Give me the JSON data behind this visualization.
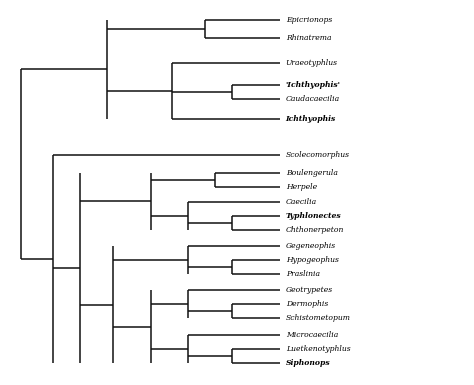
{
  "taxa": [
    {
      "name": "Epicrionops",
      "bold": false
    },
    {
      "name": "Rhinatrema",
      "bold": false
    },
    {
      "name": "Uraeotyphlus",
      "bold": false
    },
    {
      "name": "’Ichthyophis’",
      "bold": true
    },
    {
      "name": "Caudacaecilia",
      "bold": false
    },
    {
      "name": "Ichthyophis",
      "bold": true
    },
    {
      "name": "Scolecomorphus",
      "bold": false
    },
    {
      "name": "Boulengerula",
      "bold": false
    },
    {
      "name": "Herpele",
      "bold": false
    },
    {
      "name": "Caecilia",
      "bold": false
    },
    {
      "name": "Typhlonectes",
      "bold": true
    },
    {
      "name": "Chthonerpeton",
      "bold": false
    },
    {
      "name": "Gegeneophis",
      "bold": false
    },
    {
      "name": "Hypogeophus",
      "bold": false
    },
    {
      "name": "Praslinia",
      "bold": false
    },
    {
      "name": "Geotrypetes",
      "bold": false
    },
    {
      "name": "Dermophis",
      "bold": false
    },
    {
      "name": "Schistometopum",
      "bold": false
    },
    {
      "name": "Microcaecilia",
      "bold": false
    },
    {
      "name": "Luetkenotyphlus",
      "bold": false
    },
    {
      "name": "Siphonops",
      "bold": true
    }
  ],
  "line_color": "#111111",
  "bg_color": "#ffffff",
  "font_size": 5.5,
  "lw": 1.1,
  "fig_w": 4.74,
  "fig_h": 3.85,
  "dpi": 100
}
